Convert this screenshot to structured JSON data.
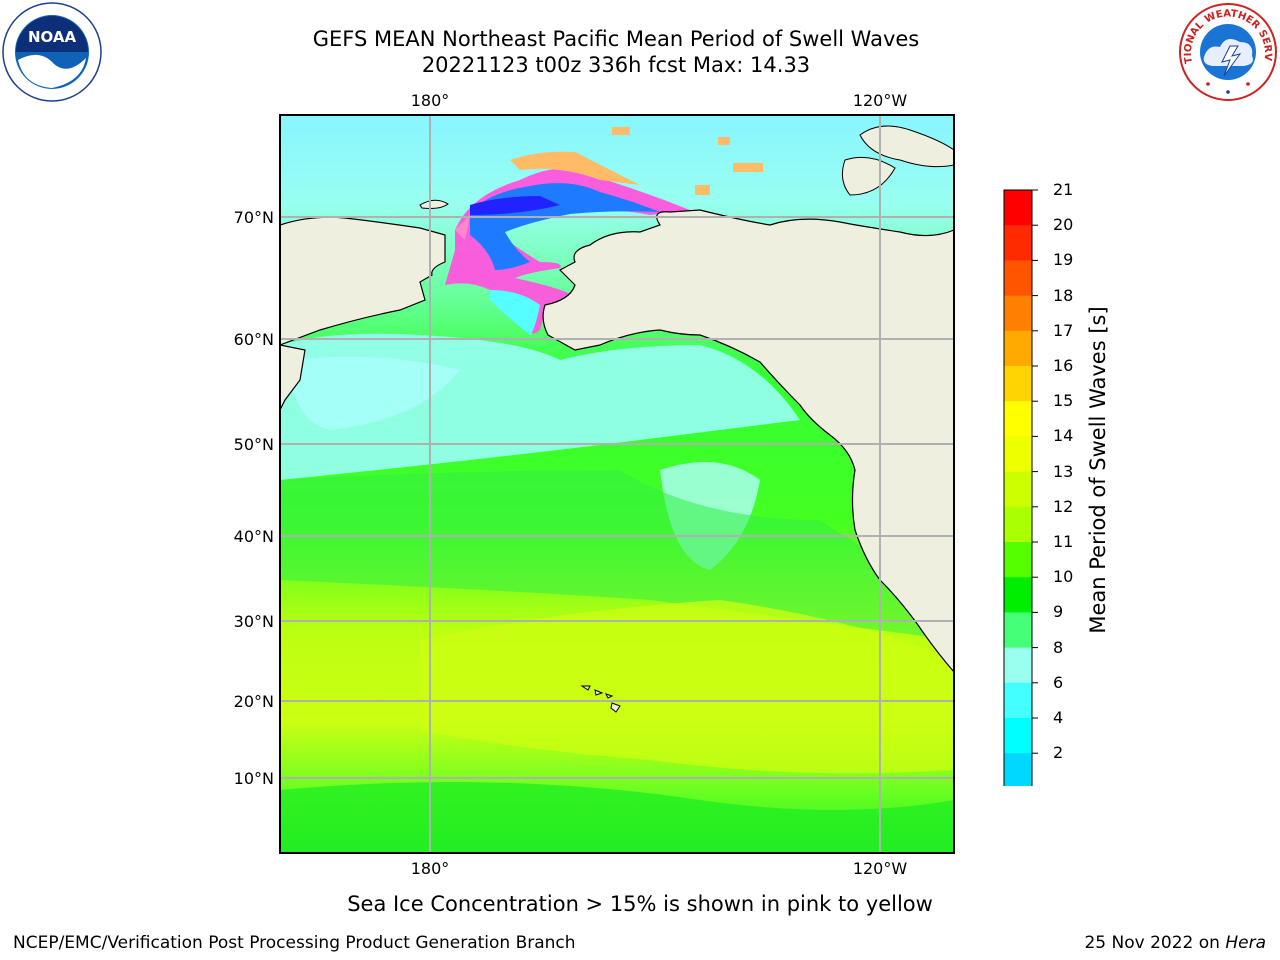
{
  "header": {
    "title_line1": "GEFS MEAN Northeast Pacific Mean Period of Swell Waves",
    "title_line2": "20221123 t00z 336h fcst   Max: 14.33"
  },
  "map": {
    "top_lon_labels": [
      "180°",
      "120°W"
    ],
    "bottom_lon_labels": [
      "180°",
      "120°W"
    ],
    "lat_labels": [
      "70°N",
      "60°N",
      "50°N",
      "40°N",
      "30°N",
      "20°N",
      "10°N"
    ],
    "land_color": "#efefdf",
    "grid_color": "#b0b0b0"
  },
  "colorbar": {
    "title": "Mean Period of Swell Waves [s]",
    "labels": [
      "21",
      "20",
      "19",
      "18",
      "17",
      "16",
      "15",
      "14",
      "13",
      "12",
      "11",
      "10",
      "9",
      "8",
      "6",
      "4",
      "2"
    ],
    "colors": [
      "#ff0000",
      "#ff2a00",
      "#ff5500",
      "#ff8000",
      "#ffaa00",
      "#ffd400",
      "#ffff00",
      "#eeff00",
      "#ccff00",
      "#aaff00",
      "#55ff00",
      "#00ee00",
      "#44ff77",
      "#99ffee",
      "#44ffff",
      "#00ffff",
      "#00d8ff",
      "#0077ff"
    ],
    "extend_min_color": "#0000ff"
  },
  "note": "Sea Ice Concentration > 15% is shown in pink to yellow",
  "footer": {
    "left": "NCEP/EMC/Verification Post Processing Product Generation Branch",
    "right_date": "25 Nov 2022 on ",
    "right_host": "Hera"
  },
  "logos": {
    "noaa_text": "NOAA",
    "nws_text": "NATIONAL WEATHER SERVICE"
  }
}
